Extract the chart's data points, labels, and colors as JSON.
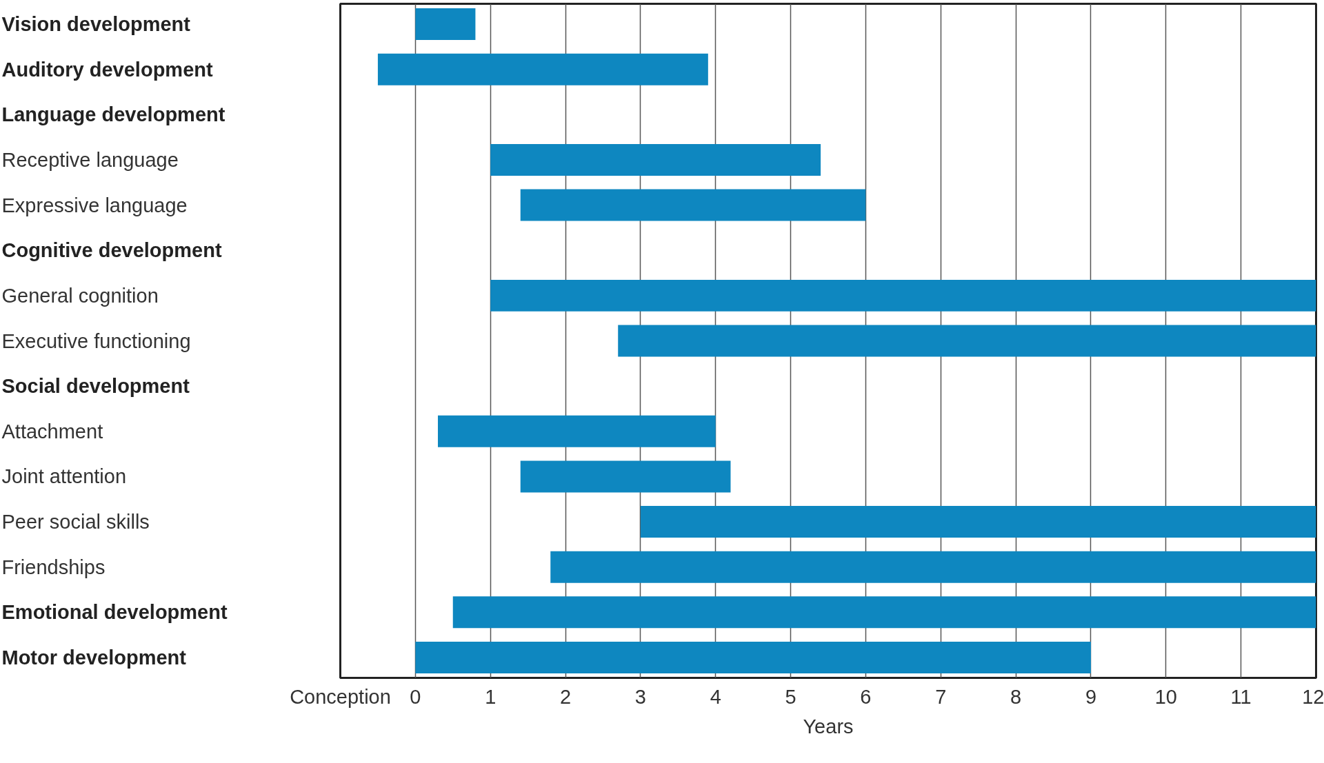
{
  "chart_data": {
    "type": "bar",
    "orientation": "horizontal",
    "xlabel": "Years",
    "categories": [
      "Vision development",
      "Auditory development",
      "Language development",
      "  Receptive language",
      "  Expressive language",
      "Cognitive development",
      "  General cognition",
      "  Executive functioning",
      "Social development",
      "  Attachment",
      "  Joint attention",
      "  Peer social skills",
      "  Friendships",
      "Emotional development",
      "Motor development"
    ],
    "base": [
      0,
      -0.5,
      null,
      1,
      1.4,
      null,
      1,
      2.7,
      null,
      0.3,
      1.4,
      3,
      1.8,
      0.5,
      0
    ],
    "values": [
      0.8,
      4.4,
      null,
      4.4,
      4.6,
      null,
      11,
      9.3,
      null,
      3.7,
      2.8,
      9,
      10.2,
      11.5,
      9
    ],
    "color": "#0e87c0",
    "xlim": [
      -1,
      12
    ],
    "xticks": [
      {
        "value": -1,
        "label": "Conception"
      },
      0,
      1,
      2,
      3,
      4,
      5,
      6,
      7,
      8,
      9,
      10,
      11,
      12
    ],
    "grid": "x"
  }
}
